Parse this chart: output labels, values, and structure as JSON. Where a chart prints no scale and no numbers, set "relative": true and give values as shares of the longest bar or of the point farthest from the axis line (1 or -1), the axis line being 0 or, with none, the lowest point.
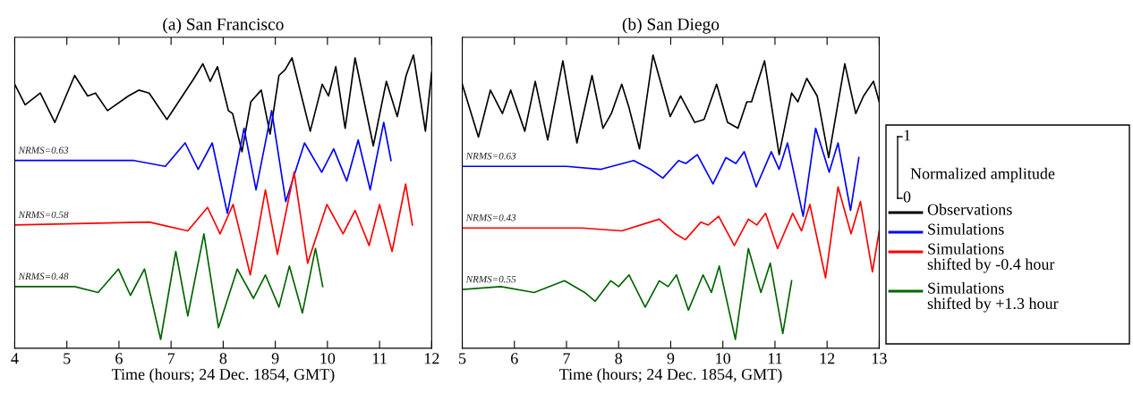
{
  "chart_data": [
    {
      "type": "line",
      "title": "(a) San Francisco",
      "xlabel": "Time (hours; 24 Dec. 1854, GMT)",
      "relative": true,
      "xlim": [
        4,
        12
      ],
      "xticks": [
        4,
        5,
        6,
        7,
        8,
        9,
        10,
        11,
        12
      ],
      "tick_labels": "x",
      "grid": false,
      "legend": false,
      "series": [
        {
          "color": "#000000",
          "x": [
            4.0,
            4.2,
            4.49,
            4.77,
            5.15,
            5.4,
            5.55,
            5.78,
            6.18,
            6.38,
            6.58,
            6.92,
            7.44,
            7.61,
            7.75,
            7.89,
            8.1,
            8.18,
            8.36,
            8.53,
            8.73,
            8.9,
            9.07,
            9.19,
            9.32,
            9.67,
            9.9,
            10.02,
            10.16,
            10.34,
            10.53,
            10.88,
            11.13,
            11.34,
            11.51,
            11.65,
            11.88,
            12.0
          ],
          "values": [
            0.9,
            0.83,
            0.87,
            0.77,
            0.93,
            0.86,
            0.87,
            0.81,
            0.86,
            0.88,
            0.87,
            0.78,
            0.92,
            0.97,
            0.91,
            0.96,
            0.81,
            0.8,
            0.67,
            0.84,
            0.88,
            0.73,
            0.93,
            0.95,
            0.99,
            0.74,
            0.9,
            0.86,
            0.96,
            0.75,
            0.99,
            0.69,
            0.91,
            0.79,
            0.93,
            1,
            0.74,
            0.94
          ]
        },
        {
          "color": "#0000ff",
          "x": [
            4.0,
            6.29,
            6.89,
            7.27,
            7.52,
            7.79,
            8.08,
            8.4,
            8.63,
            8.93,
            9.2,
            9.56,
            9.89,
            10.12,
            10.37,
            10.59,
            10.82,
            11.08,
            11.22
          ],
          "values": [
            0.64,
            0.64,
            0.62,
            0.7,
            0.61,
            0.7,
            0.46,
            0.75,
            0.54,
            0.81,
            0.5,
            0.7,
            0.6,
            0.68,
            0.57,
            0.71,
            0.54,
            0.77,
            0.64
          ]
        },
        {
          "color": "#ff0000",
          "x": [
            4.0,
            6.58,
            7.32,
            7.7,
            7.94,
            8.19,
            8.52,
            8.81,
            9.04,
            9.36,
            9.62,
            9.99,
            10.3,
            10.53,
            10.8,
            11.0,
            11.24,
            11.5,
            11.63
          ],
          "values": [
            0.42,
            0.43,
            0.4,
            0.48,
            0.39,
            0.49,
            0.25,
            0.54,
            0.32,
            0.6,
            0.29,
            0.49,
            0.39,
            0.47,
            0.35,
            0.49,
            0.33,
            0.56,
            0.42
          ]
        },
        {
          "color": "#006400",
          "x": [
            4.0,
            5.15,
            5.6,
            5.99,
            6.22,
            6.49,
            6.8,
            7.09,
            7.32,
            7.63,
            7.91,
            8.27,
            8.58,
            8.81,
            9.07,
            9.27,
            9.52,
            9.77,
            9.91
          ],
          "values": [
            0.21,
            0.21,
            0.19,
            0.27,
            0.18,
            0.27,
            0.03,
            0.33,
            0.11,
            0.39,
            0.07,
            0.27,
            0.17,
            0.25,
            0.14,
            0.28,
            0.12,
            0.34,
            0.21
          ]
        }
      ],
      "annotations": [
        "NRMS=0.63",
        "NRMS=0.58",
        "NRMS=0.48"
      ]
    },
    {
      "type": "line",
      "title": "(b) San Diego",
      "xlabel": "Time (hours; 24 Dec. 1854, GMT)",
      "relative": true,
      "xlim": [
        5,
        13
      ],
      "xticks": [
        5,
        6,
        7,
        8,
        9,
        10,
        11,
        12,
        13
      ],
      "tick_labels": "x",
      "grid": false,
      "legend": "right",
      "legend_title": "Normalized amplitude",
      "series": [
        {
          "name": "Observations",
          "color": "#000000",
          "x": [
            5.0,
            5.31,
            5.54,
            5.77,
            5.93,
            6.2,
            6.4,
            6.64,
            6.93,
            7.2,
            7.49,
            7.7,
            7.86,
            8.06,
            8.2,
            8.4,
            8.66,
            8.99,
            9.19,
            9.46,
            9.64,
            9.88,
            10.09,
            10.29,
            10.46,
            10.55,
            10.8,
            11.08,
            11.32,
            11.44,
            11.61,
            11.81,
            12.03,
            12.34,
            12.55,
            12.7,
            12.89,
            13.0
          ],
          "values": [
            0.9,
            0.72,
            0.88,
            0.8,
            0.88,
            0.74,
            0.91,
            0.71,
            0.98,
            0.7,
            0.93,
            0.75,
            0.8,
            0.9,
            0.82,
            0.68,
            1,
            0.79,
            0.86,
            0.77,
            0.78,
            0.9,
            0.77,
            0.75,
            0.84,
            0.84,
            0.98,
            0.66,
            0.87,
            0.84,
            0.92,
            0.86,
            0.65,
            0.97,
            0.8,
            0.86,
            0.91,
            0.84
          ]
        },
        {
          "name": "Simulations",
          "color": "#0000ff",
          "x": [
            5.0,
            7.0,
            7.66,
            8.29,
            8.61,
            8.85,
            9.15,
            9.29,
            9.51,
            9.81,
            10.06,
            10.25,
            10.41,
            10.64,
            10.93,
            11.08,
            11.24,
            11.54,
            11.78,
            12.04,
            12.21,
            12.45,
            12.61
          ],
          "values": [
            0.62,
            0.62,
            0.61,
            0.64,
            0.61,
            0.58,
            0.64,
            0.63,
            0.66,
            0.56,
            0.65,
            0.63,
            0.67,
            0.55,
            0.67,
            0.61,
            0.7,
            0.45,
            0.75,
            0.6,
            0.7,
            0.47,
            0.65
          ]
        },
        {
          "name": "Simulations\nshifted by -0.4 hour",
          "color": "#ff0000",
          "x": [
            5.0,
            7.29,
            8.06,
            8.78,
            9.09,
            9.28,
            9.58,
            9.72,
            9.92,
            10.22,
            10.49,
            10.65,
            10.82,
            11.05,
            11.34,
            11.51,
            11.67,
            11.97,
            12.21,
            12.46,
            12.64,
            12.87,
            13.0
          ],
          "values": [
            0.41,
            0.41,
            0.4,
            0.44,
            0.39,
            0.37,
            0.43,
            0.42,
            0.45,
            0.35,
            0.44,
            0.42,
            0.46,
            0.34,
            0.46,
            0.4,
            0.49,
            0.24,
            0.55,
            0.39,
            0.5,
            0.26,
            0.4
          ]
        },
        {
          "name": "Simulations\nshifted by +1.3 hour",
          "color": "#006400",
          "x": [
            5.0,
            5.74,
            6.38,
            6.96,
            7.35,
            7.55,
            7.85,
            8.0,
            8.2,
            8.51,
            8.78,
            8.95,
            9.11,
            9.34,
            9.62,
            9.78,
            9.93,
            10.24,
            10.49,
            10.73,
            10.91,
            11.15,
            11.32
          ],
          "values": [
            0.2,
            0.21,
            0.19,
            0.23,
            0.19,
            0.16,
            0.23,
            0.21,
            0.25,
            0.14,
            0.23,
            0.21,
            0.25,
            0.13,
            0.25,
            0.19,
            0.28,
            0.03,
            0.34,
            0.19,
            0.29,
            0.05,
            0.23
          ]
        }
      ],
      "annotations": [
        "NRMS=0.63",
        "NRMS=0.43",
        "NRMS=0.55",
        "1",
        "0"
      ]
    }
  ]
}
